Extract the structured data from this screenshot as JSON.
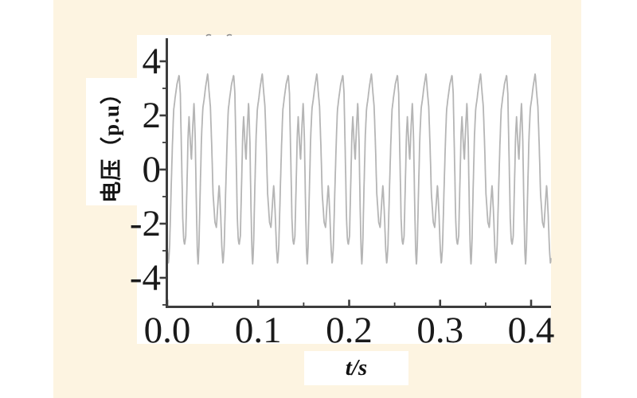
{
  "page": {
    "outer_background": "#ffffff",
    "panel_background": "#fdf4e1"
  },
  "chart_data": {
    "type": "line",
    "title": "",
    "xlabel": "t/s",
    "ylabel": "电压（p.u）",
    "grid": false,
    "legend": false,
    "x_axis": {
      "min": 0,
      "max": 0.423,
      "unit": "s",
      "major_ticks": [
        0,
        0.1,
        0.2,
        0.3,
        0.4
      ],
      "major_tick_labels": [
        "0.0",
        "0.1",
        "0.2",
        "0.3",
        "0.4"
      ],
      "minor_ticks": [
        0.05,
        0.15,
        0.25,
        0.35
      ]
    },
    "y_axis": {
      "min": -5,
      "max": 4.85,
      "unit": "p.u",
      "major_ticks": [
        4,
        2,
        0,
        -2,
        -4
      ],
      "major_tick_labels": [
        "4",
        "2",
        "0",
        "-2",
        "-4"
      ],
      "minor_ticks": [
        3,
        1,
        -1,
        -3,
        -5
      ]
    },
    "colors": {
      "axis": "#3d3d3d",
      "curve": "#b5b5b5",
      "tick_text": "#1a1a1a"
    },
    "series": [
      {
        "name": "voltage-waveform",
        "description": "Distorted periodic voltage waveform, amplitude about ±3.55 p.u., repeating motif of 60 ms: tall peak, U-trough -2.78, M-bump (1.95/0.3/2.5), deep valley -3.55, second tall peak 3.55, W-dip (-2.15/-0.55), deep valley -3.5",
        "period_ms": 60,
        "start_phase_ms": 46.9,
        "duration_ms": 422,
        "sample_step_ms": 0.3,
        "motif_points": [
          [
            0,
            3.5
          ],
          [
            1.3,
            2.8
          ],
          [
            2.6,
            0.6
          ],
          [
            4,
            -1.8
          ],
          [
            5,
            -2.6
          ],
          [
            6,
            -2.78
          ],
          [
            7.3,
            -2.45
          ],
          [
            8.6,
            -0.6
          ],
          [
            9.9,
            1.3
          ],
          [
            10.9,
            1.95
          ],
          [
            12.1,
            1.15
          ],
          [
            13.5,
            0.3
          ],
          [
            15,
            1.6
          ],
          [
            16.4,
            2.5
          ],
          [
            17.8,
            1
          ],
          [
            19,
            -1.4
          ],
          [
            20,
            -3
          ],
          [
            20.9,
            -3.55
          ],
          [
            21.9,
            -2.7
          ],
          [
            23.2,
            -0.7
          ],
          [
            24.6,
            1.2
          ],
          [
            26,
            2.25
          ],
          [
            27.3,
            2.55
          ],
          [
            29.3,
            3.1
          ],
          [
            31.4,
            3.55
          ],
          [
            33,
            2.85
          ],
          [
            34.4,
            2.3
          ],
          [
            35.8,
            0.9
          ],
          [
            37.3,
            -0.9
          ],
          [
            39.4,
            -1.95
          ],
          [
            41,
            -2.15
          ],
          [
            42.6,
            -1.25
          ],
          [
            44,
            -0.55
          ],
          [
            45.6,
            -1.6
          ],
          [
            47,
            -2.9
          ],
          [
            48.2,
            -3.5
          ],
          [
            49.5,
            -2.9
          ],
          [
            51,
            -1
          ],
          [
            52.6,
            0.9
          ],
          [
            54,
            2.2
          ],
          [
            55.6,
            2.65
          ],
          [
            57.6,
            3.15
          ]
        ]
      }
    ]
  }
}
